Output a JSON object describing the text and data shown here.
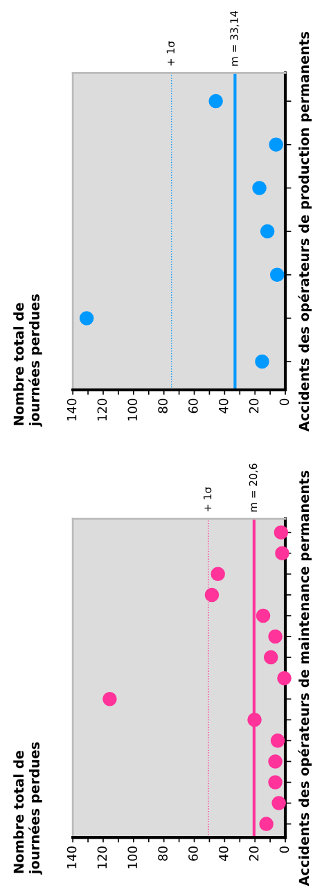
{
  "chart_data": [
    {
      "type": "scatter",
      "orientation": "horizontal",
      "ylabel": "Accidents des opérateurs de maintenance permanents",
      "annotations": [
        "Nombre total de\njournées perdues"
      ],
      "categories": [
        null,
        null,
        null,
        null,
        null,
        null,
        null,
        null,
        null,
        null,
        null,
        null,
        null,
        null,
        null
      ],
      "series": [
        {
          "color": "#ff3399",
          "values": [
            2.8,
            2.1,
            44.4,
            48.4,
            14.6,
            6.6,
            9.5,
            0.7,
            115.7,
            20.3,
            5,
            6.6,
            6.6,
            4.3,
            12.5
          ]
        }
      ],
      "xlim": [
        140,
        0
      ],
      "xticks": [
        140,
        {
          "value": 130,
          "label": null
        },
        120,
        {
          "value": 110,
          "label": null
        },
        100,
        {
          "value": 90,
          "label": null
        },
        80,
        {
          "value": 70,
          "label": null
        },
        60,
        {
          "value": 50,
          "label": null
        },
        40,
        {
          "value": 30,
          "label": null
        },
        20,
        {
          "value": 10,
          "label": null
        },
        0
      ],
      "ref_lines": [
        {
          "axis": "x",
          "value": 20.6,
          "label": "m = 20,6",
          "color": "#ff3399",
          "line_style": "solid"
        },
        {
          "axis": "x",
          "value": 50.7,
          "label": "+ 1σ",
          "color": "#ff3399",
          "line_style": "dotted"
        }
      ],
      "marker": "circle",
      "grid": false
    },
    {
      "type": "scatter",
      "orientation": "horizontal",
      "ylabel": "Accidents des opérateurs de production permanents",
      "annotations": [
        "Nombre total de\njournées perdues"
      ],
      "categories": [
        null,
        null,
        null,
        null,
        null,
        null,
        null
      ],
      "series": [
        {
          "color": "#0099ff",
          "values": [
            45.8,
            6.1,
            17.1,
            11.8,
            5.4,
            130.9,
            15.3
          ]
        }
      ],
      "xlim": [
        140,
        0
      ],
      "xticks": [
        140,
        {
          "value": 130,
          "label": null
        },
        120,
        {
          "value": 110,
          "label": null
        },
        100,
        {
          "value": 90,
          "label": null
        },
        80,
        {
          "value": 70,
          "label": null
        },
        60,
        {
          "value": 50,
          "label": null
        },
        40,
        {
          "value": 30,
          "label": null
        },
        20,
        {
          "value": 10,
          "label": null
        },
        0
      ],
      "ref_lines": [
        {
          "axis": "x",
          "value": 33.14,
          "label": "m = 33,14",
          "color": "#0099ff",
          "line_style": "solid"
        },
        {
          "axis": "x",
          "value": 75,
          "label": "+ 1σ",
          "color": "#0099ff",
          "line_style": "dotted"
        }
      ],
      "marker": "circle",
      "grid": false
    }
  ]
}
